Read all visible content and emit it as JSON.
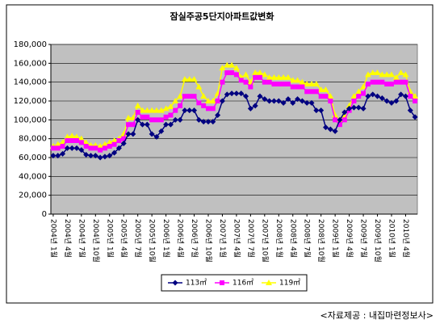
{
  "chart_data": {
    "type": "line",
    "title": "잠실주공5단지아파트값변화",
    "footnote": "<자료제공 : 내집마련정보사>",
    "categories": [
      "2004년 1월",
      null,
      null,
      "2004년 4월",
      null,
      null,
      "2004년 7월",
      null,
      null,
      "2004년 10월",
      null,
      null,
      "2005년 1월",
      null,
      null,
      "2005년 4월",
      null,
      null,
      "2005년 7월",
      null,
      null,
      "2005년 10월",
      null,
      null,
      "2006년 1월",
      null,
      null,
      "2006년 4월",
      null,
      null,
      "2006년 7월",
      null,
      null,
      "2006년 10월",
      null,
      null,
      "2007년 1월",
      null,
      null,
      "2007년 4월",
      null,
      null,
      "2007년 7월",
      null,
      null,
      "2007년 10월",
      null,
      null,
      "2008년 1월",
      null,
      null,
      "2008년 4월",
      null,
      null,
      "2008년 7월",
      null,
      null,
      "2008년 10월",
      null,
      null,
      "2009년 1월",
      null,
      null,
      "2009년 4월",
      null,
      null,
      "2009년 7월",
      null,
      null,
      "2009년 10월",
      null,
      null,
      "2010년 1월",
      null,
      null,
      "2010년 4월",
      null,
      null
    ],
    "series": [
      {
        "name": "113㎡",
        "color": "#000080",
        "marker": "diamond",
        "values": [
          62000,
          62000,
          64000,
          70000,
          70000,
          70000,
          68000,
          63000,
          62000,
          62000,
          60000,
          61000,
          62000,
          65000,
          70000,
          75000,
          85000,
          85000,
          100000,
          95000,
          95000,
          85000,
          82000,
          88000,
          95000,
          95000,
          100000,
          100000,
          110000,
          110000,
          110000,
          100000,
          98000,
          98000,
          98000,
          105000,
          120000,
          127000,
          128000,
          128000,
          128000,
          125000,
          112000,
          115000,
          125000,
          122000,
          120000,
          120000,
          120000,
          118000,
          122000,
          118000,
          122000,
          120000,
          118000,
          118000,
          110000,
          110000,
          92000,
          90000,
          88000,
          100000,
          108000,
          112000,
          113000,
          113000,
          112000,
          125000,
          127000,
          125000,
          123000,
          120000,
          118000,
          120000,
          127000,
          125000,
          110000,
          103000
        ]
      },
      {
        "name": "116㎡",
        "color": "#ff00ff",
        "marker": "square",
        "values": [
          70000,
          70000,
          72000,
          78000,
          78000,
          78000,
          76000,
          72000,
          70000,
          70000,
          68000,
          70000,
          72000,
          74000,
          78000,
          80000,
          95000,
          95000,
          108000,
          103000,
          103000,
          100000,
          100000,
          100000,
          103000,
          105000,
          110000,
          115000,
          125000,
          125000,
          125000,
          118000,
          115000,
          112000,
          112000,
          120000,
          140000,
          150000,
          150000,
          148000,
          142000,
          140000,
          135000,
          145000,
          145000,
          140000,
          140000,
          138000,
          138000,
          138000,
          138000,
          135000,
          135000,
          135000,
          130000,
          130000,
          130000,
          125000,
          125000,
          120000,
          100000,
          95000,
          100000,
          110000,
          120000,
          125000,
          128000,
          138000,
          140000,
          140000,
          140000,
          138000,
          138000,
          140000,
          140000,
          140000,
          125000,
          120000
        ]
      },
      {
        "name": "119㎡",
        "color": "#ffff00",
        "marker": "triangle",
        "values": [
          72000,
          74000,
          76000,
          82000,
          83000,
          82000,
          80000,
          76000,
          73000,
          73000,
          72000,
          74000,
          76000,
          78000,
          80000,
          85000,
          102000,
          102000,
          115000,
          110000,
          110000,
          110000,
          110000,
          110000,
          112000,
          114000,
          120000,
          125000,
          143000,
          143000,
          143000,
          135000,
          125000,
          120000,
          120000,
          128000,
          155000,
          158000,
          158000,
          155000,
          145000,
          148000,
          140000,
          150000,
          150000,
          148000,
          145000,
          145000,
          145000,
          145000,
          145000,
          142000,
          142000,
          140000,
          138000,
          138000,
          138000,
          132000,
          132000,
          125000,
          105000,
          100000,
          105000,
          115000,
          125000,
          130000,
          135000,
          148000,
          150000,
          150000,
          148000,
          148000,
          148000,
          145000,
          150000,
          148000,
          130000,
          125000
        ]
      }
    ],
    "ylim": [
      0,
      180000
    ],
    "yticks": [
      0,
      {
        "value": 20000,
        "label": "20,000"
      },
      {
        "value": 40000,
        "label": "40,000"
      },
      {
        "value": 60000,
        "label": "60,000"
      },
      {
        "value": 80000,
        "label": "80,000"
      },
      {
        "value": 100000,
        "label": "100,000"
      },
      {
        "value": 120000,
        "label": "120,000"
      },
      {
        "value": 140000,
        "label": "140,000"
      },
      {
        "value": 160000,
        "label": "160,000"
      },
      {
        "value": 180000,
        "label": "180,000"
      }
    ],
    "grid": true,
    "legend": "bottom"
  }
}
